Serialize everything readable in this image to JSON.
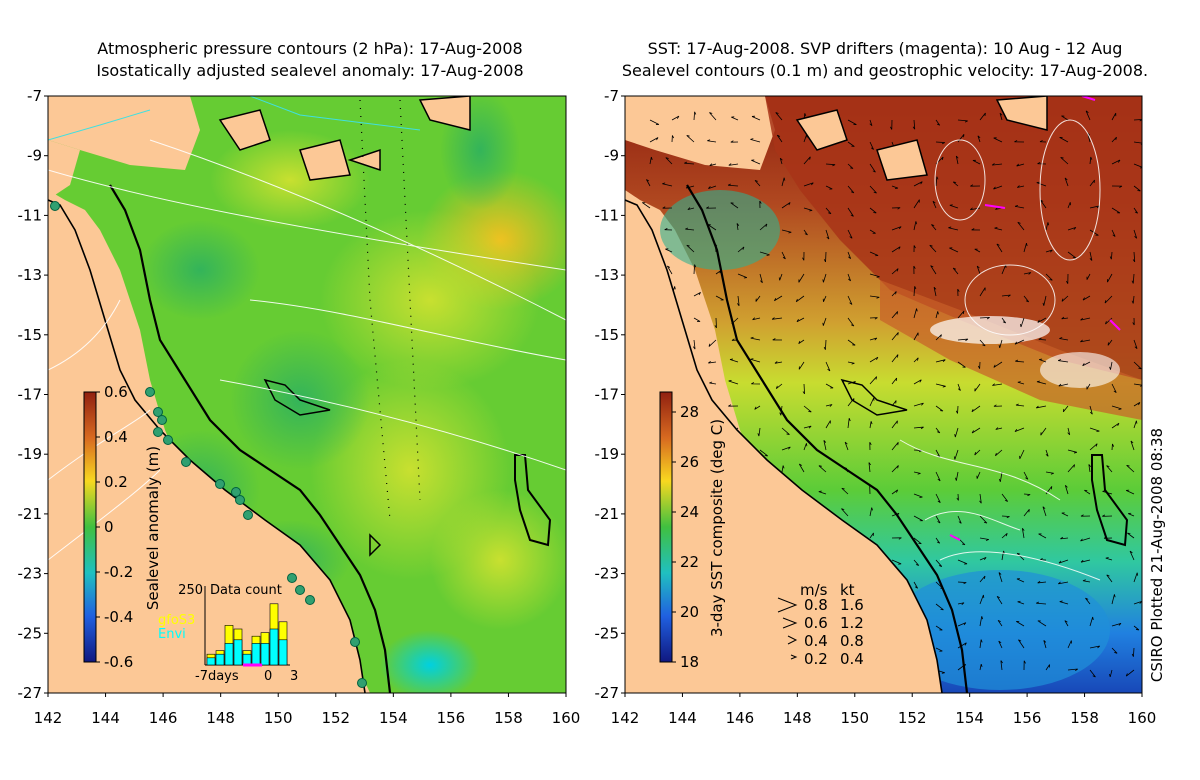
{
  "left_panel": {
    "title_line1": "Atmospheric pressure contours (2 hPa): 17-Aug-2008",
    "title_line2": "Isostatically adjusted sealevel anomaly: 17-Aug-2008",
    "y_ticks": [
      "-7",
      "-9",
      "-11",
      "-13",
      "-15",
      "-17",
      "-19",
      "-21",
      "-23",
      "-25",
      "-27"
    ],
    "x_ticks": [
      "142",
      "144",
      "146",
      "148",
      "150",
      "152",
      "154",
      "156",
      "158",
      "160"
    ],
    "colorbar_label": "Sealevel anomaly (m)",
    "colorbar_ticks": [
      "0.6",
      "0.4",
      "0.2",
      "0",
      "-0.2",
      "-0.4",
      "-0.6"
    ],
    "inset": {
      "title": "Data count",
      "y_max_label": "250",
      "x_labels": [
        "-7days",
        "0",
        "3"
      ],
      "legend": [
        "gfoS3",
        "Envi"
      ],
      "legend_colors": [
        "#ffff00",
        "#00ffff"
      ],
      "bars_yellow": [
        0.15,
        0.2,
        0.55,
        0.5,
        0.2,
        0.4,
        0.45,
        0.85,
        0.6
      ],
      "bars_cyan": [
        0.1,
        0.15,
        0.3,
        0.35,
        0.15,
        0.3,
        0.3,
        0.5,
        0.35
      ]
    }
  },
  "right_panel": {
    "title_line1": "SST: 17-Aug-2008. SVP drifters (magenta): 10 Aug - 12 Aug",
    "title_line2": "Sealevel contours (0.1 m) and geostrophic velocity: 17-Aug-2008.",
    "y_ticks": [
      "-7",
      "-9",
      "-11",
      "-13",
      "-15",
      "-17",
      "-19",
      "-21",
      "-23",
      "-25",
      "-27"
    ],
    "x_ticks": [
      "142",
      "144",
      "146",
      "148",
      "150",
      "152",
      "154",
      "156",
      "158",
      "160"
    ],
    "colorbar_label": "3-day SST composite (deg C)",
    "colorbar_ticks": [
      "28",
      "26",
      "24",
      "22",
      "20",
      "18"
    ],
    "velocity_legend": {
      "header_ms": "m/s",
      "header_kt": "kt",
      "rows": [
        {
          "ms": "0.8",
          "kt": "1.6"
        },
        {
          "ms": "0.6",
          "kt": "1.2"
        },
        {
          "ms": "0.4",
          "kt": "0.8"
        },
        {
          "ms": "0.2",
          "kt": "0.4"
        }
      ]
    }
  },
  "credit": "CSIRO Plotted 21-Aug-2008 08:38",
  "colors": {
    "land": "#fcc896",
    "ocean_green": "#66cc33",
    "warm_red": "#a32a10",
    "coast": "#000000"
  }
}
